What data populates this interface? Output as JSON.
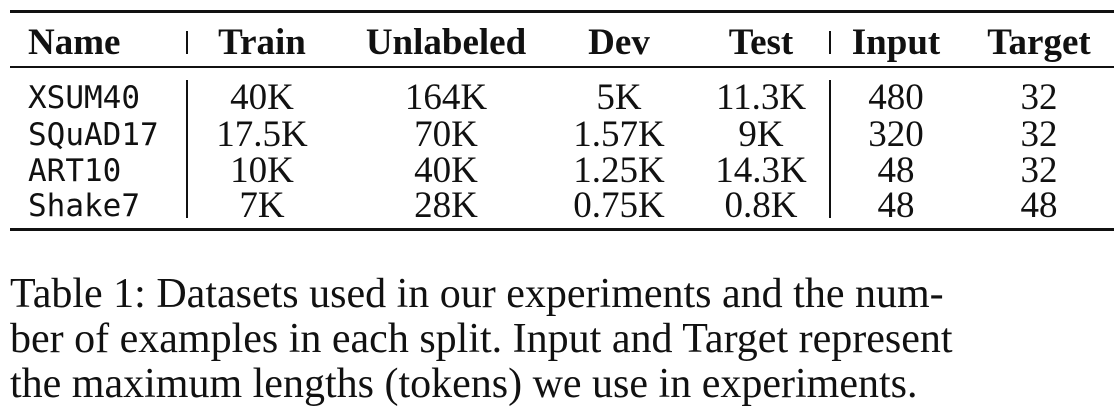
{
  "table": {
    "headers": {
      "name": "Name",
      "train": "Train",
      "unlabeled": "Unlabeled",
      "dev": "Dev",
      "test": "Test",
      "input": "Input",
      "target": "Target"
    },
    "rows": [
      {
        "name": "XSUM40",
        "train": "40K",
        "unlabeled": "164K",
        "dev": "5K",
        "test": "11.3K",
        "input": "480",
        "target": "32"
      },
      {
        "name": "SQuAD17",
        "train": "17.5K",
        "unlabeled": "70K",
        "dev": "1.57K",
        "test": "9K",
        "input": "320",
        "target": "32"
      },
      {
        "name": "ART10",
        "train": "10K",
        "unlabeled": "40K",
        "dev": "1.25K",
        "test": "14.3K",
        "input": "48",
        "target": "32"
      },
      {
        "name": "Shake7",
        "train": "7K",
        "unlabeled": "28K",
        "dev": "0.75K",
        "test": "0.8K",
        "input": "48",
        "target": "48"
      }
    ]
  },
  "caption": {
    "lines": [
      "Table 1: Datasets used in our experiments and the num-",
      "ber of examples in each split. Input and Target represent",
      "the maximum lengths (tokens) we use in experiments."
    ]
  }
}
